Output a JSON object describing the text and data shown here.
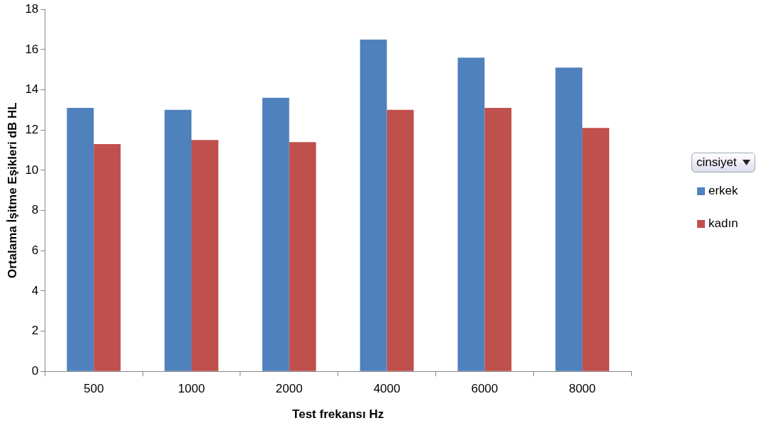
{
  "chart_data": {
    "type": "bar",
    "xlabel": "Test frekansı Hz",
    "ylabel": "Ortalama İşitme Eşikleri dB HL",
    "legend_title": "cinsiyet",
    "categories": [
      "500",
      "1000",
      "2000",
      "4000",
      "6000",
      "8000"
    ],
    "series": [
      {
        "name": "erkek",
        "color": "#4f81bd",
        "values": [
          13.1,
          13.0,
          13.6,
          16.5,
          15.6,
          15.1
        ]
      },
      {
        "name": "kadın",
        "color": "#c0504d",
        "values": [
          11.3,
          11.5,
          11.4,
          13.0,
          13.1,
          12.1
        ]
      }
    ],
    "ylim": [
      0,
      18
    ],
    "yticks": [
      0,
      2,
      4,
      6,
      8,
      10,
      12,
      14,
      16,
      18
    ],
    "grid": false,
    "legend": "right"
  }
}
